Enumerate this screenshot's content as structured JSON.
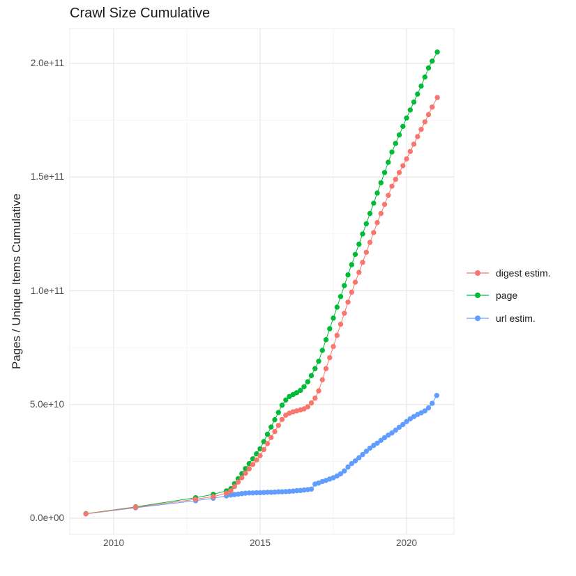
{
  "chart_data": {
    "type": "scatter",
    "title": "Crawl Size Cumulative",
    "xlabel": "",
    "ylabel": "Pages / Unique Items Cumulative",
    "legend_position": "right",
    "grid": "major and minor, light grey on white",
    "value_unit": "billions (1e9) of pages / unique items",
    "xlim": [
      2008.4,
      2021.7
    ],
    "ylim_billions": [
      -8,
      215
    ],
    "x_ticks": [
      {
        "label": "2010",
        "year": 2010
      },
      {
        "label": "2015",
        "year": 2015
      },
      {
        "label": "2020",
        "year": 2020
      }
    ],
    "x_minor_years": [
      2012.5,
      2017.5
    ],
    "y_ticks": [
      {
        "label": "0.0e+00",
        "billions": 0
      },
      {
        "label": "5.0e+10",
        "billions": 50
      },
      {
        "label": "1.0e+11",
        "billions": 100
      },
      {
        "label": "1.5e+11",
        "billions": 150
      },
      {
        "label": "2.0e+11",
        "billions": 200
      }
    ],
    "y_minor_billions": [
      25,
      75,
      125,
      175
    ],
    "series": [
      {
        "name": "digest estim.",
        "color": "#F8766D",
        "points_year_billions": [
          [
            2009.05,
            1.9
          ],
          [
            2010.75,
            4.8
          ],
          [
            2012.8,
            8.3
          ],
          [
            2013.4,
            9.5
          ],
          [
            2013.85,
            11
          ],
          [
            2014.0,
            12
          ],
          [
            2014.125,
            13.9
          ],
          [
            2014.25,
            15.9
          ],
          [
            2014.375,
            17.8
          ],
          [
            2014.5,
            19.8
          ],
          [
            2014.625,
            21.7
          ],
          [
            2014.75,
            23.6
          ],
          [
            2014.875,
            25.6
          ],
          [
            2015.0,
            27.5
          ],
          [
            2015.125,
            30.2
          ],
          [
            2015.25,
            32.8
          ],
          [
            2015.375,
            35.5
          ],
          [
            2015.5,
            38.1
          ],
          [
            2015.625,
            40.8
          ],
          [
            2015.75,
            43.4
          ],
          [
            2015.875,
            45.3
          ],
          [
            2016.0,
            46.2
          ],
          [
            2016.125,
            46.8
          ],
          [
            2016.25,
            47.2
          ],
          [
            2016.375,
            47.6
          ],
          [
            2016.5,
            48.1
          ],
          [
            2016.625,
            49
          ],
          [
            2016.75,
            50.7
          ],
          [
            2016.875,
            52.8
          ],
          [
            2017.0,
            56
          ],
          [
            2017.125,
            60.9
          ],
          [
            2017.25,
            65.8
          ],
          [
            2017.375,
            70.6
          ],
          [
            2017.5,
            75.5
          ],
          [
            2017.625,
            80.4
          ],
          [
            2017.75,
            85.3
          ],
          [
            2017.875,
            90.1
          ],
          [
            2018.0,
            95
          ],
          [
            2018.125,
            99.4
          ],
          [
            2018.25,
            103.8
          ],
          [
            2018.375,
            108.1
          ],
          [
            2018.5,
            112.5
          ],
          [
            2018.625,
            116.9
          ],
          [
            2018.75,
            121.3
          ],
          [
            2018.875,
            125.6
          ],
          [
            2019.0,
            130
          ],
          [
            2019.125,
            134
          ],
          [
            2019.25,
            138
          ],
          [
            2019.375,
            142
          ],
          [
            2019.5,
            146
          ],
          [
            2019.625,
            149
          ],
          [
            2019.75,
            152
          ],
          [
            2019.875,
            155
          ],
          [
            2020.0,
            158
          ],
          [
            2020.125,
            161.3
          ],
          [
            2020.25,
            164.5
          ],
          [
            2020.375,
            167.8
          ],
          [
            2020.5,
            171
          ],
          [
            2020.625,
            174.3
          ],
          [
            2020.75,
            177.5
          ],
          [
            2020.875,
            180.8
          ],
          [
            2021.05,
            185
          ]
        ]
      },
      {
        "name": "page",
        "color": "#00BA38",
        "points_year_billions": [
          [
            2009.05,
            2
          ],
          [
            2010.75,
            5
          ],
          [
            2012.8,
            9
          ],
          [
            2013.4,
            10.5
          ],
          [
            2013.85,
            12
          ],
          [
            2014.0,
            13
          ],
          [
            2014.125,
            15.2
          ],
          [
            2014.25,
            17.4
          ],
          [
            2014.375,
            19.6
          ],
          [
            2014.5,
            21.8
          ],
          [
            2014.625,
            24
          ],
          [
            2014.75,
            26.1
          ],
          [
            2014.875,
            28.3
          ],
          [
            2015.0,
            30.5
          ],
          [
            2015.125,
            33.7
          ],
          [
            2015.25,
            36.9
          ],
          [
            2015.375,
            40.1
          ],
          [
            2015.5,
            43.3
          ],
          [
            2015.625,
            46.5
          ],
          [
            2015.75,
            49.7
          ],
          [
            2015.875,
            52
          ],
          [
            2016.0,
            53.5
          ],
          [
            2016.125,
            54.4
          ],
          [
            2016.25,
            55.2
          ],
          [
            2016.375,
            56.2
          ],
          [
            2016.5,
            57.8
          ],
          [
            2016.625,
            60
          ],
          [
            2016.75,
            62.7
          ],
          [
            2016.875,
            65.8
          ],
          [
            2017.0,
            69
          ],
          [
            2017.125,
            73.8
          ],
          [
            2017.25,
            78.5
          ],
          [
            2017.375,
            83.3
          ],
          [
            2017.5,
            88
          ],
          [
            2017.625,
            92.8
          ],
          [
            2017.75,
            97.5
          ],
          [
            2017.875,
            102.3
          ],
          [
            2018.0,
            107
          ],
          [
            2018.125,
            111.5
          ],
          [
            2018.25,
            116
          ],
          [
            2018.375,
            120.5
          ],
          [
            2018.5,
            125
          ],
          [
            2018.625,
            129.5
          ],
          [
            2018.75,
            134
          ],
          [
            2018.875,
            138.5
          ],
          [
            2019.0,
            143
          ],
          [
            2019.125,
            147.5
          ],
          [
            2019.25,
            152
          ],
          [
            2019.375,
            156.5
          ],
          [
            2019.5,
            161
          ],
          [
            2019.625,
            164.8
          ],
          [
            2019.75,
            168.5
          ],
          [
            2019.875,
            172.3
          ],
          [
            2020.0,
            176
          ],
          [
            2020.125,
            179.5
          ],
          [
            2020.25,
            183
          ],
          [
            2020.375,
            186.5
          ],
          [
            2020.5,
            190
          ],
          [
            2020.625,
            194
          ],
          [
            2020.75,
            198
          ],
          [
            2020.875,
            201
          ],
          [
            2021.05,
            205
          ]
        ]
      },
      {
        "name": "url estim.",
        "color": "#619CFF",
        "points_year_billions": [
          [
            2009.05,
            1.9
          ],
          [
            2010.75,
            4.6
          ],
          [
            2012.8,
            7.7
          ],
          [
            2013.4,
            8.8
          ],
          [
            2013.85,
            9.8
          ],
          [
            2014.0,
            10.2
          ],
          [
            2014.125,
            10.4
          ],
          [
            2014.25,
            10.6
          ],
          [
            2014.375,
            10.8
          ],
          [
            2014.5,
            11
          ],
          [
            2014.625,
            11.1
          ],
          [
            2014.75,
            11.1
          ],
          [
            2014.875,
            11.2
          ],
          [
            2015.0,
            11.2
          ],
          [
            2015.125,
            11.3
          ],
          [
            2015.25,
            11.4
          ],
          [
            2015.375,
            11.4
          ],
          [
            2015.5,
            11.5
          ],
          [
            2015.625,
            11.6
          ],
          [
            2015.75,
            11.6
          ],
          [
            2015.875,
            11.7
          ],
          [
            2016.0,
            11.8
          ],
          [
            2016.125,
            11.9
          ],
          [
            2016.25,
            12.1
          ],
          [
            2016.375,
            12.2
          ],
          [
            2016.5,
            12.4
          ],
          [
            2016.625,
            12.6
          ],
          [
            2016.75,
            12.8
          ],
          [
            2016.875,
            15
          ],
          [
            2017.0,
            15.5
          ],
          [
            2017.125,
            16.1
          ],
          [
            2017.25,
            16.6
          ],
          [
            2017.375,
            17.2
          ],
          [
            2017.5,
            17.8
          ],
          [
            2017.625,
            18.6
          ],
          [
            2017.75,
            19.5
          ],
          [
            2017.875,
            20.8
          ],
          [
            2018.0,
            22.5
          ],
          [
            2018.125,
            24
          ],
          [
            2018.25,
            25.2
          ],
          [
            2018.375,
            26.6
          ],
          [
            2018.5,
            28
          ],
          [
            2018.625,
            29.4
          ],
          [
            2018.75,
            30.8
          ],
          [
            2018.875,
            32
          ],
          [
            2019.0,
            33
          ],
          [
            2019.125,
            34.2
          ],
          [
            2019.25,
            35.4
          ],
          [
            2019.375,
            36.5
          ],
          [
            2019.5,
            37.5
          ],
          [
            2019.625,
            38.7
          ],
          [
            2019.75,
            40
          ],
          [
            2019.875,
            41.2
          ],
          [
            2020.0,
            42.5
          ],
          [
            2020.125,
            43.7
          ],
          [
            2020.25,
            44.7
          ],
          [
            2020.375,
            45.6
          ],
          [
            2020.5,
            46.3
          ],
          [
            2020.625,
            47.2
          ],
          [
            2020.75,
            48.5
          ],
          [
            2020.875,
            50.5
          ],
          [
            2021.03,
            54
          ]
        ]
      }
    ]
  }
}
